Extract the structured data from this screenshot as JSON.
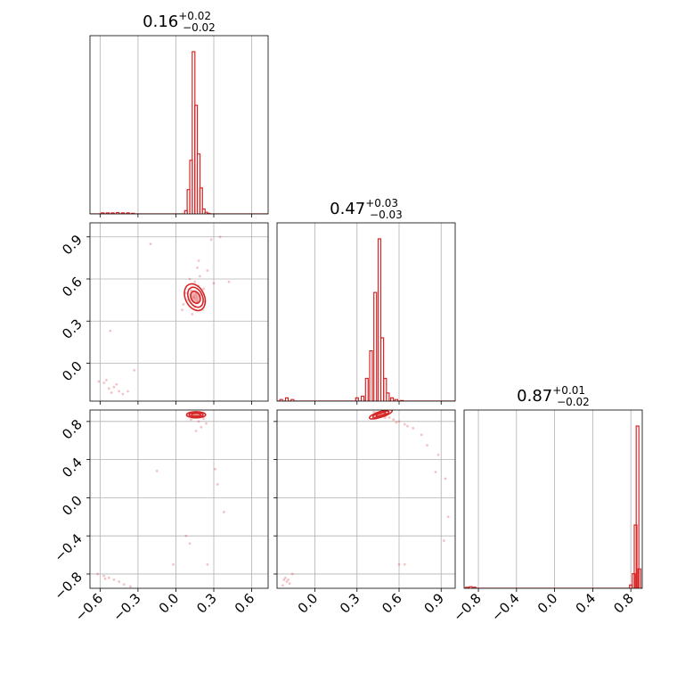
{
  "chart_data": {
    "type": "corner",
    "color": "#d62728",
    "grid": true,
    "parameters": [
      {
        "median": "0.16",
        "plus": "+0.02",
        "minus": "−0.02",
        "range": [
          -0.68,
          0.73
        ],
        "ticks": [
          -0.6,
          -0.3,
          0.0,
          0.3,
          0.6
        ],
        "tick_labels": [
          "−0.6",
          "−0.3",
          "0.0",
          "0.3",
          "0.6"
        ]
      },
      {
        "median": "0.47",
        "plus": "+0.03",
        "minus": "−0.03",
        "range": [
          -0.27,
          1.0
        ],
        "ticks": [
          0.0,
          0.3,
          0.6,
          0.9
        ],
        "tick_labels": [
          "0.0",
          "0.3",
          "0.6",
          "0.9"
        ]
      },
      {
        "median": "0.87",
        "plus": "+0.01",
        "minus": "−0.02",
        "range": [
          -0.95,
          0.92
        ],
        "ticks": [
          -0.8,
          -0.4,
          0.0,
          0.4,
          0.8
        ],
        "tick_labels": [
          "−0.8",
          "−0.4",
          "0.0",
          "0.4",
          "0.8"
        ]
      }
    ],
    "histograms": [
      {
        "bins": [
          -0.58,
          -0.54,
          -0.5,
          -0.46,
          -0.42,
          -0.38,
          -0.34,
          0.08,
          0.1,
          0.12,
          0.14,
          0.16,
          0.18,
          0.2,
          0.22,
          0.24,
          0.26
        ],
        "counts": [
          0.006,
          0.006,
          0.006,
          0.008,
          0.006,
          0.006,
          0.004,
          0.02,
          0.15,
          0.33,
          1.0,
          0.67,
          0.37,
          0.16,
          0.03,
          0.01,
          0.004
        ]
      },
      {
        "bins": [
          -0.24,
          -0.2,
          -0.16,
          0.3,
          0.34,
          0.37,
          0.4,
          0.43,
          0.46,
          0.48,
          0.5,
          0.52,
          0.55,
          0.58,
          0.62
        ],
        "counts": [
          0.01,
          0.02,
          0.01,
          0.02,
          0.03,
          0.14,
          0.31,
          0.67,
          1.0,
          0.39,
          0.14,
          0.05,
          0.02,
          0.01,
          0.004
        ]
      },
      {
        "bins": [
          -0.92,
          -0.88,
          -0.84,
          0.8,
          0.83,
          0.85,
          0.87,
          0.89
        ],
        "counts": [
          0.006,
          0.01,
          0.006,
          0.02,
          0.09,
          0.39,
          1.0,
          0.12
        ]
      }
    ],
    "points_1_0": [
      [
        0.14,
        0.47
      ],
      [
        0.16,
        0.5
      ],
      [
        0.17,
        0.44
      ],
      [
        0.12,
        0.52
      ],
      [
        0.18,
        0.55
      ],
      [
        0.15,
        0.4
      ],
      [
        0.2,
        0.49
      ],
      [
        0.1,
        0.45
      ],
      [
        0.19,
        0.62
      ],
      [
        0.13,
        0.35
      ],
      [
        0.22,
        0.53
      ],
      [
        0.08,
        0.5
      ],
      [
        0.17,
        0.68
      ],
      [
        0.21,
        0.38
      ],
      [
        0.15,
        0.58
      ],
      [
        0.11,
        0.6
      ],
      [
        0.25,
        0.66
      ],
      [
        0.06,
        0.42
      ],
      [
        0.18,
        0.73
      ],
      [
        0.23,
        0.44
      ],
      [
        0.28,
        0.88
      ],
      [
        0.35,
        0.9
      ],
      [
        0.3,
        0.57
      ],
      [
        0.05,
        0.38
      ],
      [
        -0.57,
        -0.14
      ],
      [
        -0.53,
        -0.18
      ],
      [
        -0.49,
        -0.17
      ],
      [
        -0.45,
        -0.2
      ],
      [
        -0.61,
        -0.13
      ],
      [
        -0.42,
        -0.22
      ],
      [
        -0.55,
        -0.12
      ],
      [
        -0.38,
        -0.2
      ],
      [
        -0.47,
        -0.15
      ],
      [
        -0.51,
        -0.21
      ],
      [
        -0.33,
        -0.05
      ],
      [
        -0.52,
        0.23
      ],
      [
        -0.2,
        0.85
      ],
      [
        0.42,
        0.58
      ]
    ],
    "points_2_0": [
      [
        0.15,
        0.88
      ],
      [
        0.17,
        0.86
      ],
      [
        0.13,
        0.89
      ],
      [
        0.19,
        0.85
      ],
      [
        0.11,
        0.87
      ],
      [
        0.21,
        0.86
      ],
      [
        0.16,
        0.9
      ],
      [
        0.14,
        0.84
      ],
      [
        0.18,
        0.8
      ],
      [
        0.12,
        0.82
      ],
      [
        0.22,
        0.83
      ],
      [
        0.09,
        0.86
      ],
      [
        0.24,
        0.78
      ],
      [
        0.2,
        0.74
      ],
      [
        0.16,
        0.7
      ],
      [
        -0.15,
        0.28
      ],
      [
        0.11,
        -0.48
      ],
      [
        0.31,
        0.3
      ],
      [
        0.33,
        0.14
      ],
      [
        0.38,
        -0.15
      ],
      [
        0.25,
        -0.7
      ],
      [
        0.08,
        -0.4
      ],
      [
        -0.02,
        -0.7
      ],
      [
        -0.57,
        -0.82
      ],
      [
        -0.53,
        -0.84
      ],
      [
        -0.49,
        -0.86
      ],
      [
        -0.45,
        -0.88
      ],
      [
        -0.62,
        -0.8
      ],
      [
        -0.41,
        -0.91
      ],
      [
        -0.36,
        -0.93
      ],
      [
        -0.56,
        -0.85
      ]
    ],
    "points_2_1": [
      [
        0.44,
        0.89
      ],
      [
        0.47,
        0.88
      ],
      [
        0.5,
        0.86
      ],
      [
        0.53,
        0.84
      ],
      [
        0.56,
        0.82
      ],
      [
        0.6,
        0.8
      ],
      [
        0.64,
        0.77
      ],
      [
        0.7,
        0.73
      ],
      [
        0.76,
        0.66
      ],
      [
        0.8,
        0.55
      ],
      [
        0.42,
        0.9
      ],
      [
        0.46,
        0.87
      ],
      [
        0.5,
        0.84
      ],
      [
        0.58,
        0.79
      ],
      [
        0.66,
        0.75
      ],
      [
        0.88,
        0.45
      ],
      [
        0.93,
        0.2
      ],
      [
        0.95,
        -0.2
      ],
      [
        0.92,
        -0.45
      ],
      [
        0.6,
        -0.7
      ],
      [
        0.64,
        -0.7
      ],
      [
        0.37,
        0.93
      ],
      [
        0.86,
        0.27
      ],
      [
        -0.22,
        -0.86
      ],
      [
        -0.2,
        -0.88
      ],
      [
        -0.18,
        -0.9
      ],
      [
        -0.21,
        -0.84
      ],
      [
        -0.16,
        -0.8
      ],
      [
        -0.23,
        -0.92
      ],
      [
        -0.19,
        -0.86
      ]
    ],
    "contours_1_0": [
      {
        "cx": 0.155,
        "cy": 0.47,
        "rx": 0.035,
        "ry": 0.045,
        "rot": -25
      },
      {
        "cx": 0.155,
        "cy": 0.47,
        "rx": 0.055,
        "ry": 0.075,
        "rot": -25
      },
      {
        "cx": 0.15,
        "cy": 0.47,
        "rx": 0.075,
        "ry": 0.1,
        "rot": -25
      }
    ],
    "contours_2_0": [
      {
        "cx": 0.16,
        "cy": 0.87,
        "rx": 0.035,
        "ry": 0.016,
        "rot": 0
      },
      {
        "cx": 0.16,
        "cy": 0.87,
        "rx": 0.055,
        "ry": 0.024,
        "rot": 0
      },
      {
        "cx": 0.16,
        "cy": 0.87,
        "rx": 0.075,
        "ry": 0.032,
        "rot": 0
      }
    ],
    "contours_2_1": [
      {
        "cx": 0.47,
        "cy": 0.875,
        "rx": 0.035,
        "ry": 0.014,
        "rot": -18
      },
      {
        "cx": 0.47,
        "cy": 0.875,
        "rx": 0.06,
        "ry": 0.022,
        "rot": -18
      },
      {
        "cx": 0.47,
        "cy": 0.875,
        "rx": 0.085,
        "ry": 0.03,
        "rot": -18
      }
    ]
  }
}
